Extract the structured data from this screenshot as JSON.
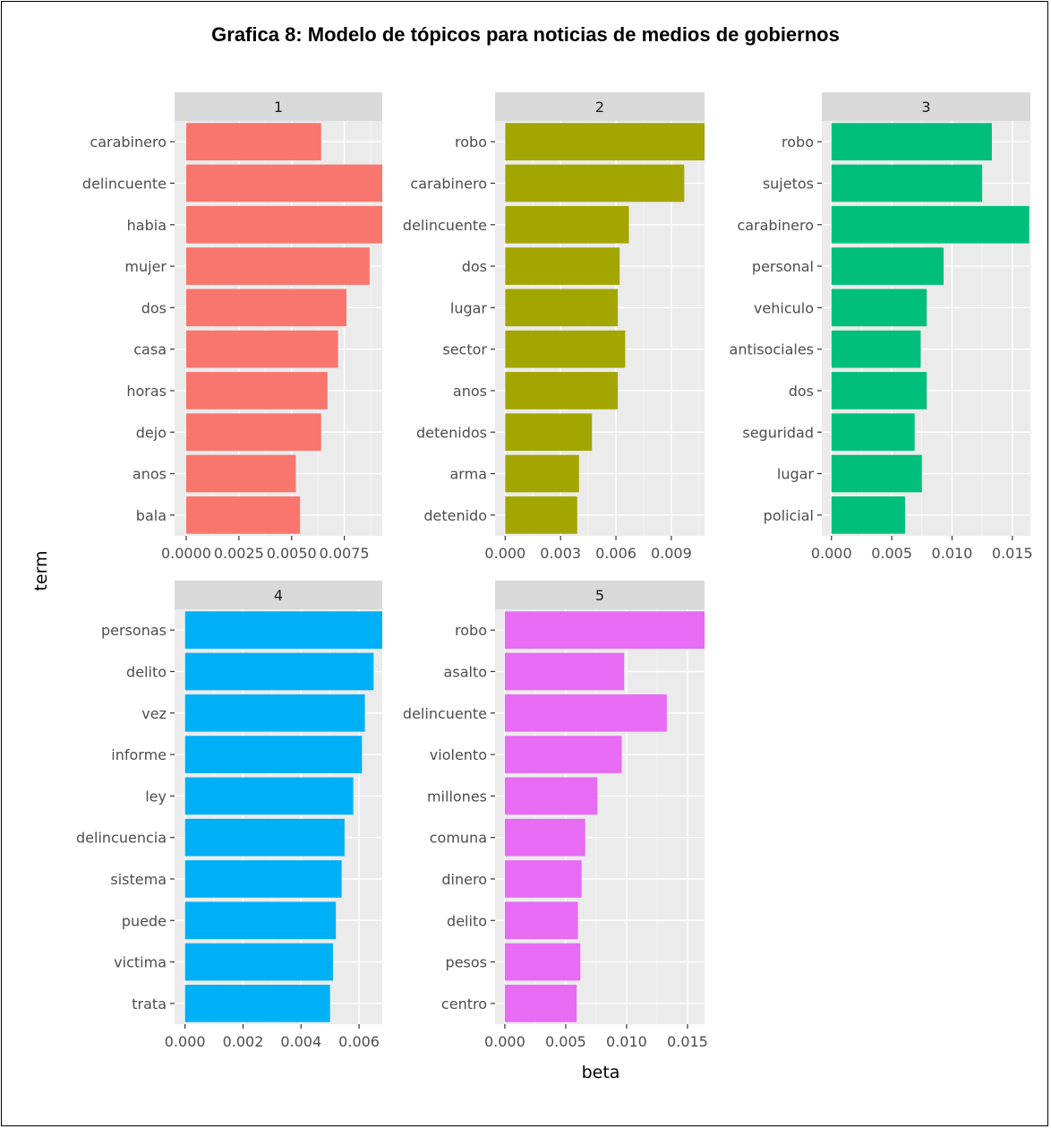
{
  "title": "Grafica 8: Modelo de tópicos para noticias de medios de gobiernos",
  "colors": {
    "panel_bg": "#EBEBEB",
    "strip_bg": "#D9D9D9",
    "grid_major": "#FFFFFF",
    "topic_1": "#F8766D",
    "topic_2": "#A3A500",
    "topic_3": "#00BF7D",
    "topic_4": "#00B0F6",
    "topic_5": "#E76BF3"
  },
  "chart_data": {
    "type": "bar",
    "orientation": "horizontal",
    "facet": "topic",
    "xlabel": "beta",
    "ylabel": "term",
    "grid": true,
    "panels": [
      {
        "strip": "1",
        "color": "#F8766D",
        "xlim": [
          -0.00055,
          0.0093
        ],
        "ticks": [
          0.0,
          0.0025,
          0.005,
          0.0075
        ],
        "tick_labels": [
          "0.0000",
          "0.0025",
          "0.0050",
          "0.0075"
        ],
        "terms": [
          "carabinero",
          "delincuente",
          "habia",
          "mujer",
          "dos",
          "casa",
          "horas",
          "dejo",
          "anos",
          "bala"
        ],
        "values": [
          0.0064,
          0.0093,
          0.0093,
          0.0087,
          0.0076,
          0.0072,
          0.0067,
          0.0064,
          0.0052,
          0.0054
        ]
      },
      {
        "strip": "2",
        "color": "#A3A500",
        "xlim": [
          -0.00055,
          0.0108
        ],
        "ticks": [
          0.0,
          0.003,
          0.006,
          0.009
        ],
        "tick_labels": [
          "0.000",
          "0.003",
          "0.006",
          "0.009"
        ],
        "terms": [
          "robo",
          "carabinero",
          "delincuente",
          "dos",
          "lugar",
          "sector",
          "anos",
          "detenidos",
          "arma",
          "detenido"
        ],
        "values": [
          0.0108,
          0.0097,
          0.0067,
          0.0062,
          0.0061,
          0.0065,
          0.0061,
          0.0047,
          0.004,
          0.0039
        ]
      },
      {
        "strip": "3",
        "color": "#00BF7D",
        "xlim": [
          -0.0008,
          0.0165
        ],
        "ticks": [
          0.0,
          0.005,
          0.01,
          0.015
        ],
        "tick_labels": [
          "0.000",
          "0.005",
          "0.010",
          "0.015"
        ],
        "terms": [
          "robo",
          "sujetos",
          "carabinero",
          "personal",
          "vehiculo",
          "antisociales",
          "dos",
          "seguridad",
          "lugar",
          "policial"
        ],
        "values": [
          0.0133,
          0.0125,
          0.0164,
          0.0093,
          0.0079,
          0.0074,
          0.0079,
          0.0069,
          0.0075,
          0.0061
        ]
      },
      {
        "strip": "4",
        "color": "#00B0F6",
        "xlim": [
          -0.00036,
          0.0068
        ],
        "ticks": [
          0.0,
          0.002,
          0.004,
          0.006
        ],
        "tick_labels": [
          "0.000",
          "0.002",
          "0.004",
          "0.006"
        ],
        "terms": [
          "personas",
          "delito",
          "vez",
          "informe",
          "ley",
          "delincuencia",
          "sistema",
          "puede",
          "victima",
          "trata"
        ],
        "values": [
          0.0068,
          0.0065,
          0.0062,
          0.0061,
          0.0058,
          0.0055,
          0.0054,
          0.0052,
          0.0051,
          0.005
        ]
      },
      {
        "strip": "5",
        "color": "#E76BF3",
        "xlim": [
          -0.0008,
          0.0164
        ],
        "ticks": [
          0.0,
          0.005,
          0.01,
          0.015
        ],
        "tick_labels": [
          "0.000",
          "0.005",
          "0.010",
          "0.015"
        ],
        "terms": [
          "robo",
          "asalto",
          "delincuente",
          "violento",
          "millones",
          "comuna",
          "dinero",
          "delito",
          "pesos",
          "centro"
        ],
        "values": [
          0.0164,
          0.0098,
          0.0133,
          0.0096,
          0.0076,
          0.0066,
          0.0063,
          0.006,
          0.0062,
          0.0059
        ]
      }
    ]
  }
}
